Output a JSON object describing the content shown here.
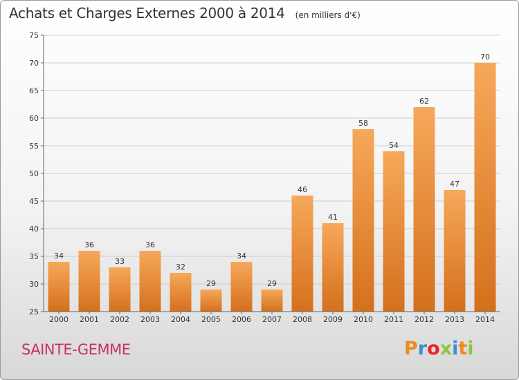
{
  "chart_data": {
    "type": "bar",
    "title": "Achats et Charges Externes 2000 à 2014",
    "subtitle": "(en milliers d'€)",
    "categories": [
      "2000",
      "2001",
      "2002",
      "2003",
      "2004",
      "2005",
      "2006",
      "2007",
      "2008",
      "2009",
      "2010",
      "2011",
      "2012",
      "2013",
      "2014"
    ],
    "values": [
      34,
      36,
      33,
      36,
      32,
      29,
      34,
      29,
      46,
      41,
      58,
      54,
      62,
      47,
      70
    ],
    "ylim": [
      25,
      75
    ],
    "yticks": [
      25,
      30,
      35,
      40,
      45,
      50,
      55,
      60,
      65,
      70,
      75
    ],
    "grid": true,
    "colors": {
      "bar_light": "#f7a85a",
      "bar_dark": "#d4701c",
      "grid": "#cccccc",
      "axis": "#666666"
    }
  },
  "footer": {
    "commune": "SAINTE-GEMME",
    "logo": "Proxiti",
    "logo_colors": [
      "#f08a1e",
      "#3a8fd8",
      "#e8262a",
      "#8dc63f",
      "#3a8fd8",
      "#f08a1e",
      "#8dc63f"
    ]
  }
}
